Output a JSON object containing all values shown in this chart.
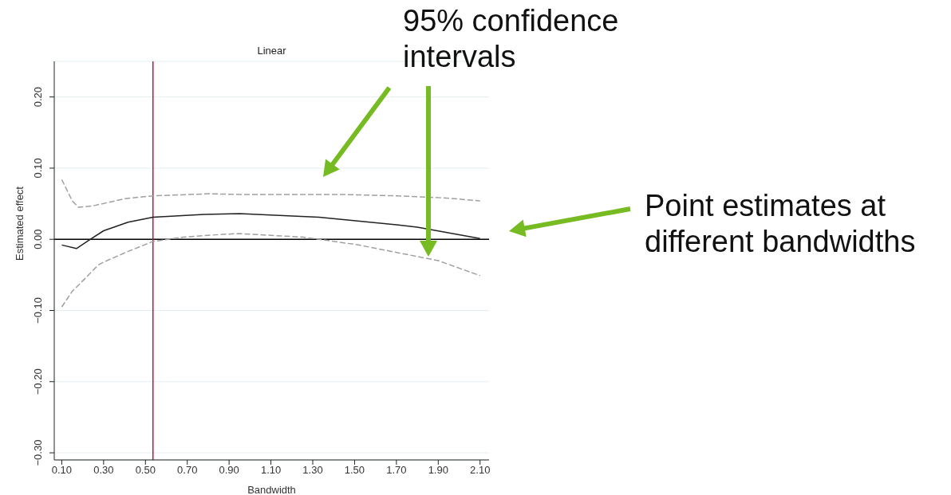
{
  "chart_data": {
    "type": "line",
    "title": "Linear",
    "xlabel": "Bandwidth",
    "ylabel": "Estimated effect",
    "xlim": [
      0.064,
      2.143
    ],
    "ylim": [
      -0.31,
      0.25
    ],
    "xticks": [
      {
        "value": 0.1,
        "label": "0.10"
      },
      {
        "value": 0.3,
        "label": "0.30"
      },
      {
        "value": 0.5,
        "label": "0.50"
      },
      {
        "value": 0.7,
        "label": "0.70"
      },
      {
        "value": 0.9,
        "label": "0.90"
      },
      {
        "value": 1.1,
        "label": "1.10"
      },
      {
        "value": 1.3,
        "label": "1.30"
      },
      {
        "value": 1.5,
        "label": "1.50"
      },
      {
        "value": 1.7,
        "label": "1.70"
      },
      {
        "value": 1.9,
        "label": "1.90"
      },
      {
        "value": 2.1,
        "label": "2.10"
      }
    ],
    "yticks": [
      {
        "value": -0.3,
        "label": "−0.30"
      },
      {
        "value": -0.2,
        "label": "−0.20"
      },
      {
        "value": -0.1,
        "label": "−0.10"
      },
      {
        "value": 0,
        "label": "0.00"
      },
      {
        "value": 0.1,
        "label": "0.10"
      },
      {
        "value": 0.2,
        "label": "0.20"
      }
    ],
    "grid": "y",
    "marker": "none",
    "legend": false,
    "series": [
      {
        "color": "#222222",
        "line_style": "solid",
        "x": [
          0.1,
          0.17,
          0.237,
          0.3,
          0.417,
          0.536,
          0.78,
          0.95,
          1.33,
          1.71,
          1.8,
          2.1
        ],
        "values": [
          -0.008,
          -0.013,
          0,
          0.012,
          0.024,
          0.031,
          0.035,
          0.036,
          0.031,
          0.02,
          0.017,
          0.001
        ]
      },
      {
        "color": "#a0a0a0",
        "line_style": "dashed",
        "x": [
          0.1,
          0.15,
          0.18,
          0.25,
          0.4,
          0.536,
          0.8,
          0.95,
          1.44,
          1.71,
          1.94,
          2.1
        ],
        "values": [
          0.084,
          0.054,
          0.045,
          0.047,
          0.057,
          0.061,
          0.064,
          0.063,
          0.063,
          0.061,
          0.058,
          0.054
        ]
      },
      {
        "color": "#a0a0a0",
        "line_style": "dashed",
        "x": [
          0.1,
          0.15,
          0.188,
          0.275,
          0.3,
          0.417,
          0.536,
          0.68,
          0.87,
          0.95,
          1.255,
          1.33,
          1.52,
          1.71,
          1.9,
          2.1
        ],
        "values": [
          -0.095,
          -0.073,
          -0.062,
          -0.036,
          -0.032,
          -0.017,
          -0.003,
          0.003,
          0.007,
          0.008,
          0.003,
          0,
          -0.008,
          -0.019,
          -0.03,
          -0.051
        ]
      }
    ],
    "ref_lines": [
      {
        "axis": "y",
        "value": 0,
        "color": "#000000",
        "line_style": "solid"
      },
      {
        "axis": "x",
        "value": 0.536,
        "color": "#c0143c",
        "line_style": "solid"
      }
    ],
    "annotations": [
      "95% confidence intervals",
      "Point estimates at different bandwidths"
    ]
  }
}
